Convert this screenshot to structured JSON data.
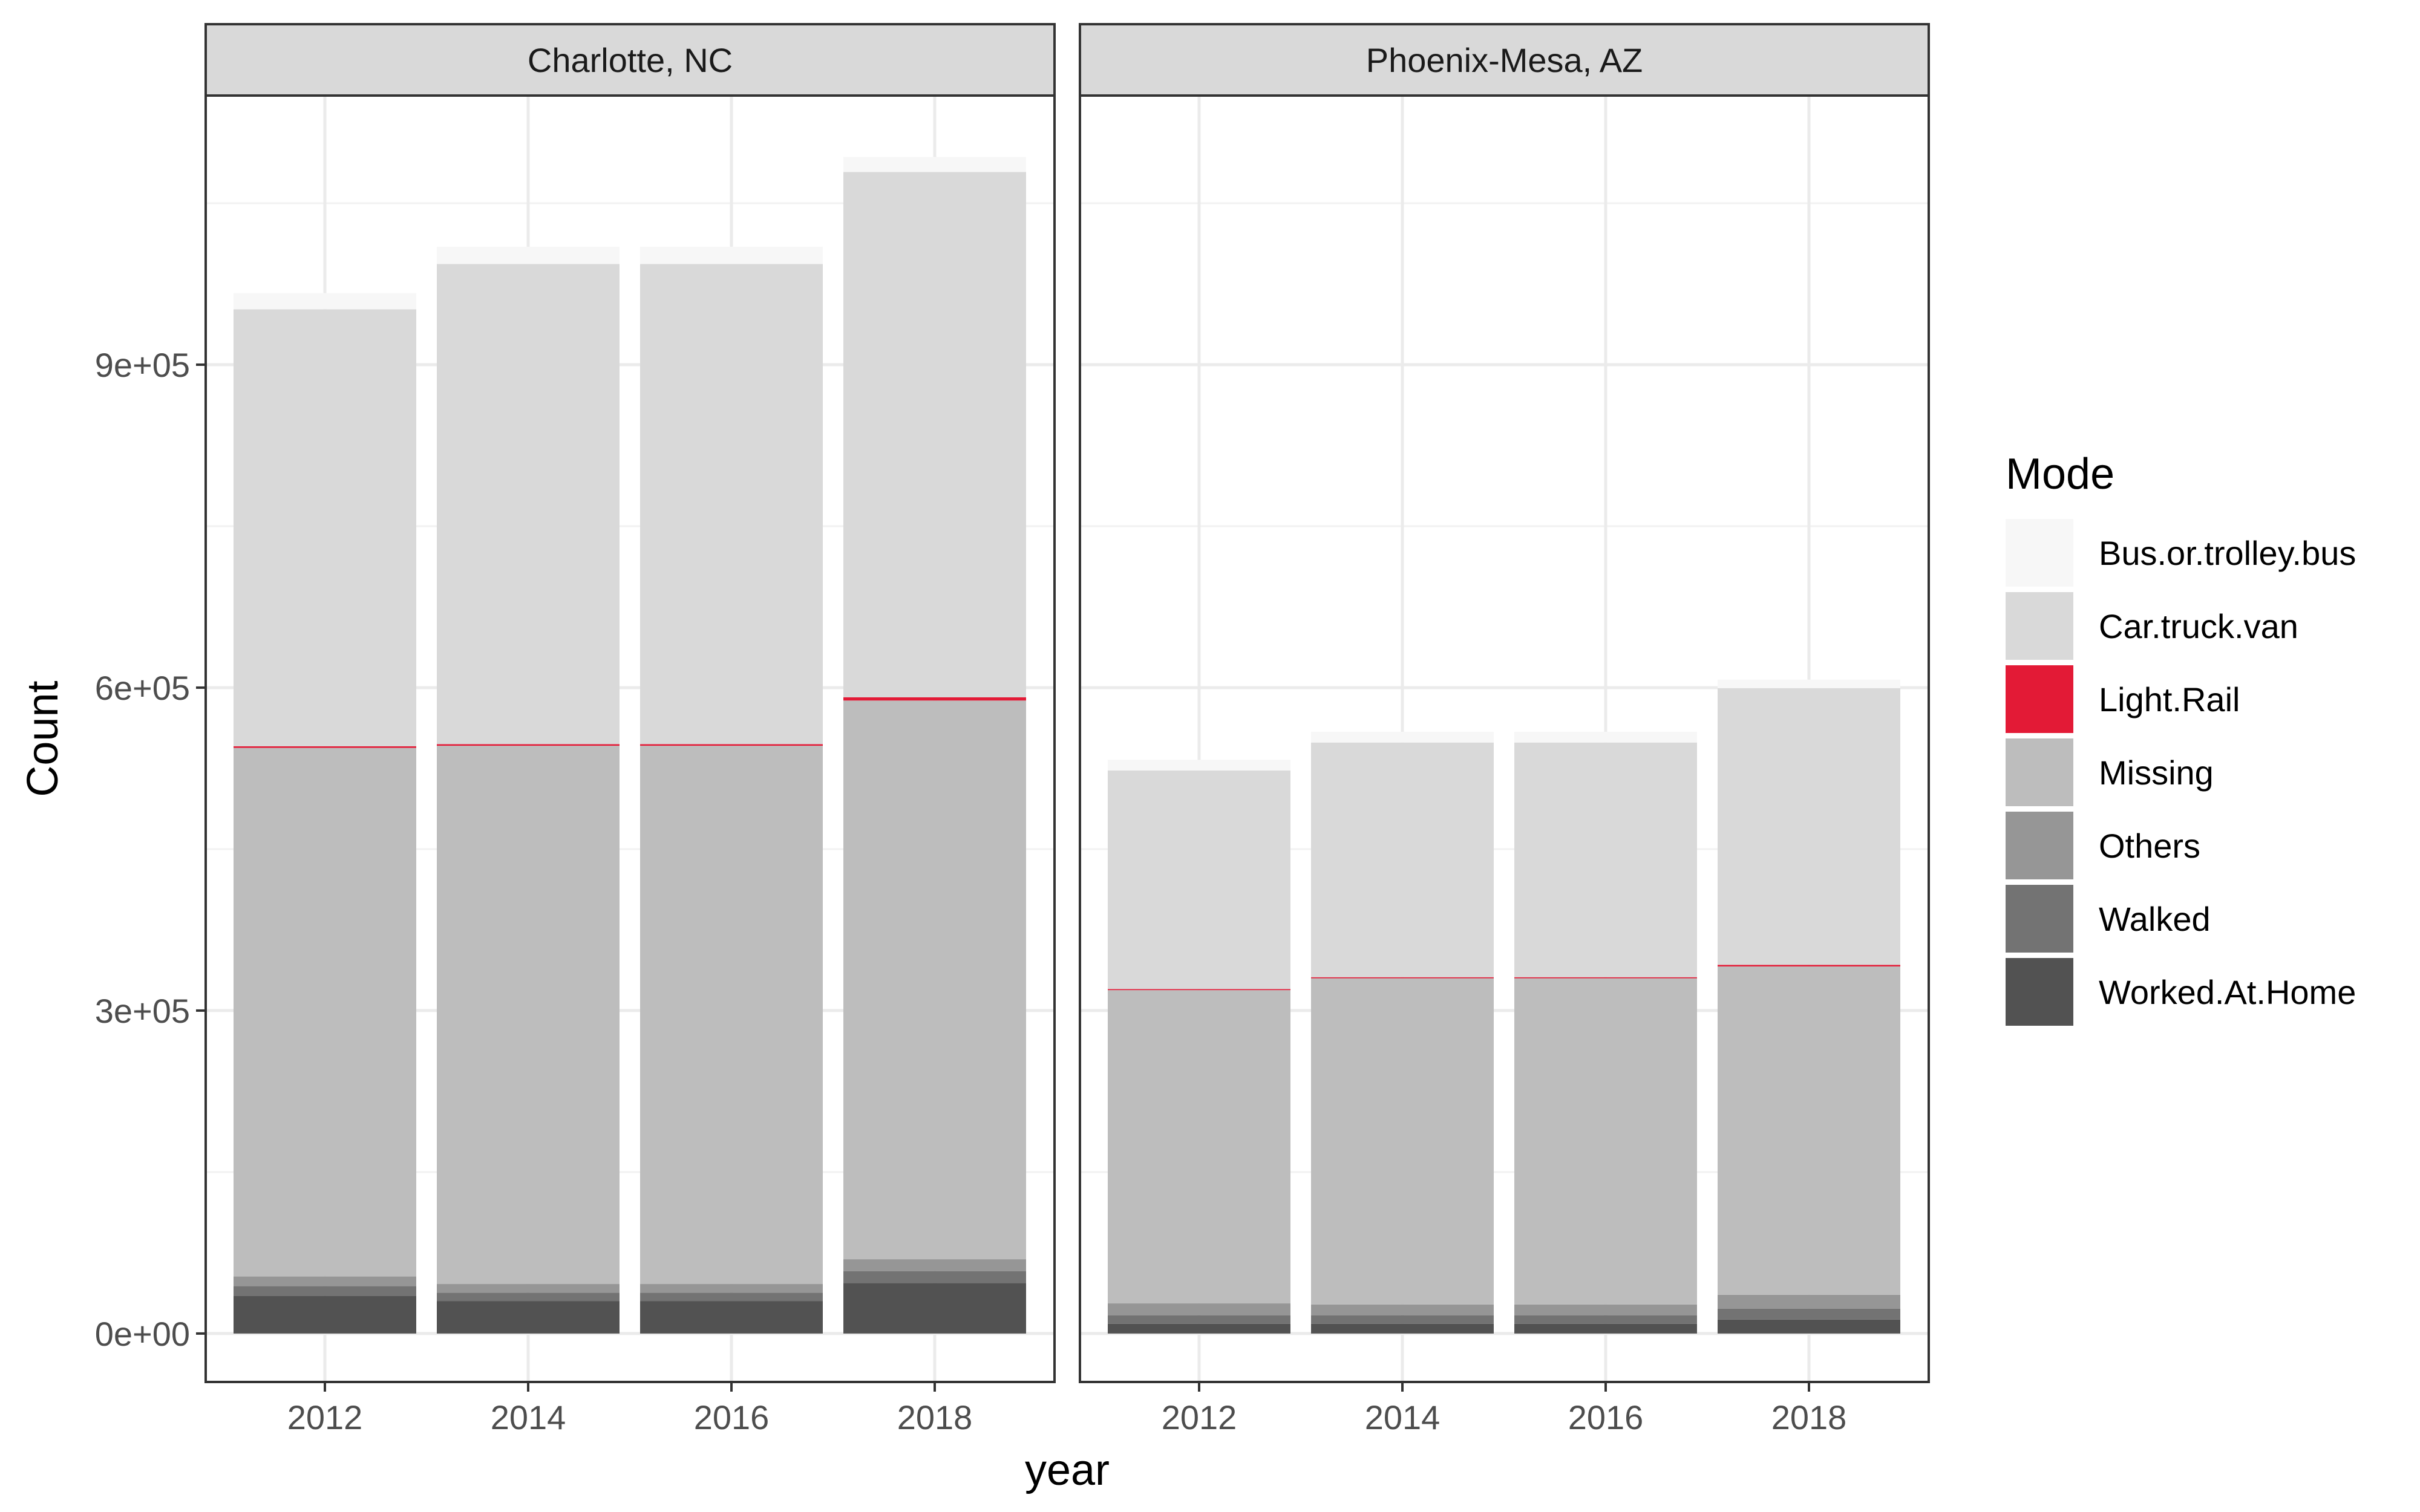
{
  "chart_data": {
    "type": "bar",
    "stacked": true,
    "xlabel": "year",
    "ylabel": "Count",
    "ylim": [
      -45000,
      1150000
    ],
    "y_ticks": [
      0,
      300000,
      600000,
      900000
    ],
    "y_tick_labels": [
      "0e+00",
      "3e+05",
      "6e+05",
      "9e+05"
    ],
    "categories": [
      "2012",
      "2014",
      "2016",
      "2018"
    ],
    "grid": true,
    "legend": {
      "title": "Mode",
      "position": "right",
      "entries": [
        {
          "name": "Bus.or.trolley.bus",
          "color": "#F7F7F7"
        },
        {
          "name": "Car.truck.van",
          "color": "#D9D9D9"
        },
        {
          "name": "Light.Rail",
          "color": "#E31A36"
        },
        {
          "name": "Missing",
          "color": "#BDBDBD"
        },
        {
          "name": "Others",
          "color": "#969696"
        },
        {
          "name": "Walked",
          "color": "#737373"
        },
        {
          "name": "Worked.At.Home",
          "color": "#525252"
        }
      ]
    },
    "stack_order_bottom_to_top": [
      "Worked.At.Home",
      "Walked",
      "Others",
      "Missing",
      "Light.Rail",
      "Car.truck.van",
      "Bus.or.trolley.bus"
    ],
    "facets": [
      {
        "title": "Charlotte, NC",
        "series": [
          {
            "name": "Worked.At.Home",
            "values": [
              35000,
              30000,
              30000,
              47000
            ]
          },
          {
            "name": "Walked",
            "values": [
              9000,
              8000,
              8000,
              11000
            ]
          },
          {
            "name": "Others",
            "values": [
              9000,
              8000,
              8000,
              11000
            ]
          },
          {
            "name": "Missing",
            "values": [
              491000,
              500000,
              500000,
              519000
            ]
          },
          {
            "name": "Light.Rail",
            "values": [
              1500,
              1500,
              1500,
              3000
            ]
          },
          {
            "name": "Car.truck.van",
            "values": [
              406000,
              446000,
              446000,
              488000
            ]
          },
          {
            "name": "Bus.or.trolley.bus",
            "values": [
              15000,
              16000,
              16000,
              14000
            ]
          }
        ]
      },
      {
        "title": "Phoenix-Mesa, AZ",
        "series": [
          {
            "name": "Worked.At.Home",
            "values": [
              9000,
              9000,
              9000,
              13000
            ]
          },
          {
            "name": "Walked",
            "values": [
              8000,
              8000,
              8000,
              10000
            ]
          },
          {
            "name": "Others",
            "values": [
              11000,
              10000,
              10000,
              13000
            ]
          },
          {
            "name": "Missing",
            "values": [
              291000,
              303000,
              303000,
              305000
            ]
          },
          {
            "name": "Light.Rail",
            "values": [
              1000,
              1000,
              1000,
              1500
            ]
          },
          {
            "name": "Car.truck.van",
            "values": [
              203000,
              218000,
              218000,
              257000
            ]
          },
          {
            "name": "Bus.or.trolley.bus",
            "values": [
              10000,
              10000,
              10000,
              8000
            ]
          }
        ]
      }
    ]
  }
}
